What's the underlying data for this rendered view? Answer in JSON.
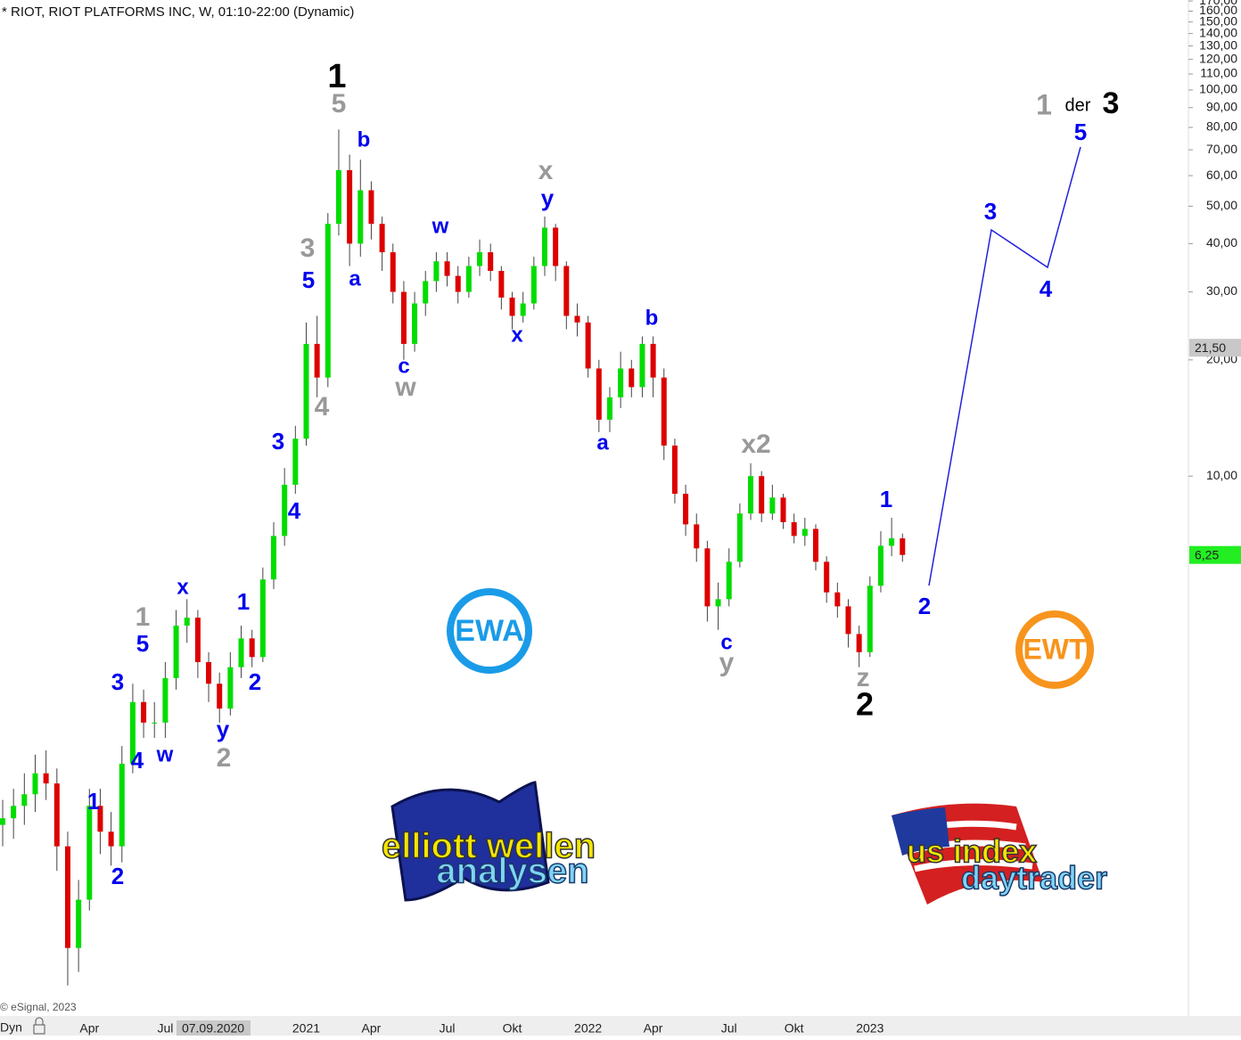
{
  "chart_data": {
    "type": "candlestick",
    "title": "* RIOT, RIOT PLATFORMS INC, W, 01:10-22:00 (Dynamic)",
    "log_scale": true,
    "grid": false,
    "up_color": "#00dd00",
    "down_color": "#dd0000",
    "categories": [
      null,
      null,
      null,
      null,
      null,
      null,
      null,
      null,
      "Apr",
      null,
      null,
      null,
      null,
      null,
      null,
      "Jul",
      null,
      null,
      null,
      null,
      null,
      null,
      null,
      null,
      null,
      null,
      null,
      null,
      "2021",
      null,
      null,
      null,
      null,
      null,
      "Apr",
      null,
      null,
      null,
      null,
      null,
      null,
      "Jul",
      null,
      null,
      null,
      null,
      null,
      "Okt",
      null,
      null,
      null,
      null,
      null,
      null,
      "2022",
      null,
      null,
      null,
      null,
      null,
      "Apr",
      null,
      null,
      null,
      null,
      null,
      null,
      "Jul",
      null,
      null,
      null,
      null,
      null,
      "Okt",
      null,
      null,
      null,
      null,
      null,
      null,
      "2023",
      null,
      null,
      null
    ],
    "open": [
      1.25,
      1.3,
      1.4,
      1.5,
      1.7,
      1.6,
      1.1,
      0.6,
      0.8,
      1.4,
      1.2,
      1.1,
      1.8,
      2.6,
      2.3,
      2.3,
      3.0,
      4.1,
      4.3,
      3.3,
      2.9,
      2.5,
      3.2,
      3.8,
      3.4,
      5.4,
      7.0,
      9.5,
      12.5,
      22,
      18,
      45,
      62,
      40,
      55,
      45,
      38,
      30,
      22,
      28,
      32,
      36,
      33,
      30,
      35,
      38,
      34,
      29,
      26,
      28,
      35,
      44,
      35,
      26,
      25,
      19,
      14,
      16,
      19,
      17,
      22,
      18,
      12,
      9,
      7.5,
      6.5,
      4.6,
      4.8,
      6.0,
      8.0,
      10,
      8.0,
      8.8,
      7.6,
      7.0,
      7.3,
      6.0,
      5.0,
      4.6,
      3.9,
      3.5,
      5.2,
      6.6,
      6.9
    ],
    "high": [
      1.45,
      1.55,
      1.7,
      1.9,
      1.95,
      1.75,
      1.2,
      0.9,
      1.55,
      1.55,
      1.35,
      2.0,
      2.9,
      2.8,
      2.6,
      3.3,
      4.5,
      4.8,
      4.5,
      3.5,
      3.1,
      3.5,
      4.1,
      4.0,
      5.8,
      7.6,
      10.5,
      13.5,
      25,
      26,
      48,
      79,
      68,
      66,
      58,
      47,
      40,
      32,
      30,
      34,
      38,
      38,
      35,
      37,
      41,
      40,
      35,
      30,
      30,
      37,
      47,
      45,
      36,
      28,
      26,
      20,
      17,
      21,
      20,
      23,
      23,
      19,
      12.5,
      9.5,
      8,
      6.8,
      5.3,
      6.5,
      8.5,
      10.8,
      10.3,
      9.5,
      9.0,
      8.0,
      7.8,
      7.5,
      6.2,
      5.3,
      4.8,
      4.1,
      5.5,
      7.2,
      7.8,
      7.1
    ],
    "low": [
      1.1,
      1.15,
      1.25,
      1.35,
      1.45,
      0.95,
      0.48,
      0.52,
      0.75,
      1.05,
      0.98,
      1.0,
      1.7,
      2.1,
      2.1,
      2.1,
      2.8,
      3.7,
      3.0,
      2.6,
      2.3,
      2.4,
      3.0,
      3.2,
      3.3,
      5.1,
      6.6,
      9.0,
      12,
      16,
      17,
      42,
      35,
      37,
      41,
      34,
      28,
      20,
      21,
      26,
      30,
      31,
      28,
      29,
      33,
      32,
      27,
      24,
      25,
      27,
      33,
      32,
      24,
      23,
      18,
      13,
      13,
      15,
      16,
      16,
      16,
      11,
      8.5,
      7,
      6,
      4.2,
      4.0,
      4.6,
      5.8,
      7.7,
      7.6,
      7.7,
      7.3,
      6.7,
      6.6,
      5.7,
      4.7,
      4.3,
      3.6,
      3.2,
      3.4,
      5.0,
      6.2,
      6.0
    ],
    "close": [
      1.3,
      1.4,
      1.5,
      1.7,
      1.6,
      1.1,
      0.6,
      0.8,
      1.4,
      1.2,
      1.1,
      1.8,
      2.6,
      2.3,
      2.3,
      3.0,
      4.1,
      4.3,
      3.3,
      2.9,
      2.5,
      3.2,
      3.8,
      3.4,
      5.4,
      7.0,
      9.5,
      12.5,
      22,
      18,
      45,
      62,
      40,
      55,
      45,
      38,
      30,
      22,
      28,
      32,
      36,
      33,
      30,
      35,
      38,
      34,
      29,
      26,
      28,
      35,
      44,
      35,
      26,
      25,
      19,
      14,
      16,
      19,
      17,
      22,
      18,
      12,
      9,
      7.5,
      6.5,
      4.6,
      4.8,
      6.0,
      8.0,
      10,
      8.0,
      8.8,
      7.6,
      7.0,
      7.3,
      6.0,
      5.0,
      4.6,
      3.9,
      3.5,
      5.2,
      6.6,
      6.9,
      6.25
    ],
    "ylim": [
      0.4,
      171
    ],
    "yticks": [
      {
        "value": 10,
        "label": "10,00"
      },
      {
        "value": 20,
        "label": "20,00"
      },
      {
        "value": 30,
        "label": "30,00"
      },
      {
        "value": 40,
        "label": "40,00"
      },
      {
        "value": 50,
        "label": "50,00"
      },
      {
        "value": 60,
        "label": "60,00"
      },
      {
        "value": 70,
        "label": "70,00"
      },
      {
        "value": 80,
        "label": "80,00"
      },
      {
        "value": 90,
        "label": "90,00"
      },
      {
        "value": 100,
        "label": "100,00"
      },
      {
        "value": 110,
        "label": "110,00"
      },
      {
        "value": 120,
        "label": "120,00"
      },
      {
        "value": 130,
        "label": "130,00"
      },
      {
        "value": 140,
        "label": "140,00"
      },
      {
        "value": 150,
        "label": "150,00"
      },
      {
        "value": 160,
        "label": "160,00"
      },
      {
        "value": 170,
        "label": "170,00"
      }
    ],
    "price_markers": [
      {
        "value": 21.5,
        "label": "21,50",
        "color": "#c8c8c8"
      },
      {
        "value": 6.25,
        "label": "6,25",
        "color": "#22ee22"
      }
    ],
    "cursor_label": "07.09.2020",
    "annotations": [
      "1",
      "5",
      "b",
      "a",
      "3",
      "5",
      "4",
      "3",
      "4",
      "c",
      "w",
      "w",
      "x",
      "x",
      "y",
      "b",
      "a",
      "x2",
      "c",
      "y",
      "1",
      "z",
      "2",
      "2",
      "3",
      "4",
      "5",
      "1",
      "der",
      "3",
      "x",
      "1",
      "5",
      "3",
      "4",
      "w",
      "y",
      "2",
      "1",
      "2",
      "1",
      "2"
    ],
    "copyright": "© eSignal, 2023",
    "mode_label": "Dyn",
    "logos": {
      "ewa": "EWA",
      "ewt": "EWT",
      "ew_top": "elliott wellen",
      "ew_bottom": "analysen",
      "us_top": "us index",
      "us_bottom": "daytrader"
    }
  }
}
